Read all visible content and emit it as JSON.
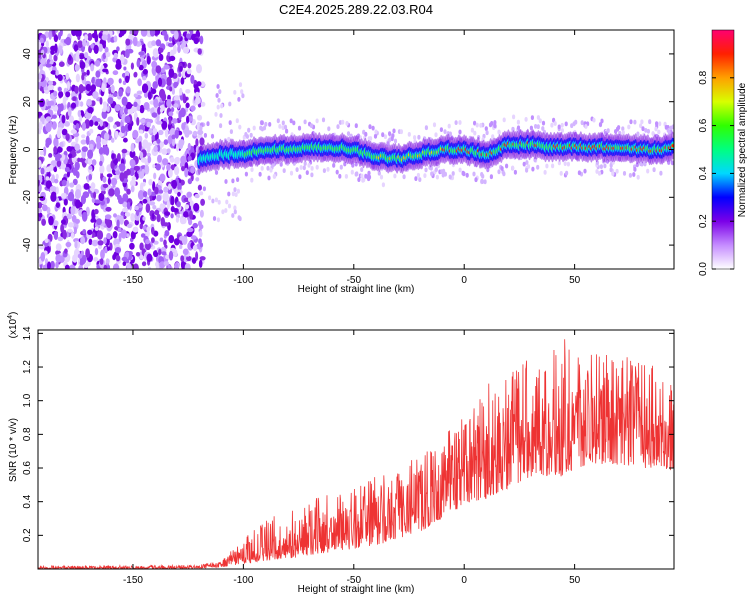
{
  "chart_data": [
    {
      "type": "heatmap",
      "title": "C2E4.2025.289.22.03.R04",
      "xlabel": "Height of straight line (km)",
      "ylabel": "Frequency (Hz)",
      "xlim": [
        -193,
        95
      ],
      "ylim": [
        -50,
        50
      ],
      "x_ticks": [
        -150,
        -100,
        -50,
        0,
        50
      ],
      "y_ticks": [
        -40,
        -20,
        0,
        20,
        40
      ],
      "colorbar": {
        "label": "Normalized spectral amplitude",
        "range": [
          0.0,
          1.0
        ],
        "ticks": [
          0.0,
          0.2,
          0.4,
          0.6,
          0.8
        ],
        "tick_labels": [
          "0.0",
          "0.2",
          "0.4",
          "0.6",
          "0.8"
        ]
      },
      "ridge": {
        "description": "dominant frequency trace",
        "x": [
          -120,
          -110,
          -100,
          -90,
          -80,
          -70,
          -60,
          -50,
          -40,
          -30,
          -20,
          -10,
          0,
          10,
          20,
          30,
          40,
          50,
          60,
          70,
          80,
          90,
          95
        ],
        "y": [
          -4,
          -2,
          -2,
          0,
          0,
          1,
          1,
          0,
          -3,
          -4,
          -2,
          0,
          0,
          -2,
          2,
          2,
          1,
          1,
          1,
          1,
          0,
          0,
          2
        ]
      }
    },
    {
      "type": "line",
      "xlabel": "Height of straight line (km)",
      "ylabel": "SNR (10 * v/v)",
      "y_multiplier_label": "(x10",
      "y_multiplier_exp": "4",
      "y_multiplier_close": ")",
      "xlim": [
        -193,
        95
      ],
      "ylim": [
        0,
        1.42
      ],
      "x_ticks": [
        -150,
        -100,
        -50,
        0,
        50
      ],
      "y_ticks": [
        0.2,
        0.4,
        0.6,
        0.8,
        1.0,
        1.2,
        1.4
      ],
      "y_tick_labels": [
        "0.2",
        "0.4",
        "0.6",
        "0.8",
        "1.0",
        "1.2",
        "1.4"
      ],
      "series": [
        {
          "name": "SNR",
          "color": "#ee3333",
          "envelope_x": [
            -193,
            -150,
            -120,
            -110,
            -100,
            -90,
            -80,
            -70,
            -60,
            -50,
            -40,
            -30,
            -20,
            -10,
            0,
            10,
            20,
            30,
            40,
            45,
            50,
            60,
            70,
            80,
            90,
            95
          ],
          "envelope_low": [
            0.0,
            0.0,
            0.005,
            0.01,
            0.03,
            0.05,
            0.06,
            0.08,
            0.1,
            0.12,
            0.14,
            0.18,
            0.22,
            0.3,
            0.38,
            0.42,
            0.48,
            0.55,
            0.55,
            0.55,
            0.6,
            0.62,
            0.62,
            0.6,
            0.6,
            0.58
          ],
          "envelope_high": [
            0.02,
            0.02,
            0.025,
            0.05,
            0.18,
            0.3,
            0.35,
            0.42,
            0.45,
            0.48,
            0.55,
            0.6,
            0.7,
            0.8,
            0.95,
            1.1,
            1.2,
            1.25,
            1.3,
            1.42,
            1.25,
            1.3,
            1.3,
            1.25,
            1.2,
            1.1
          ]
        }
      ]
    }
  ]
}
